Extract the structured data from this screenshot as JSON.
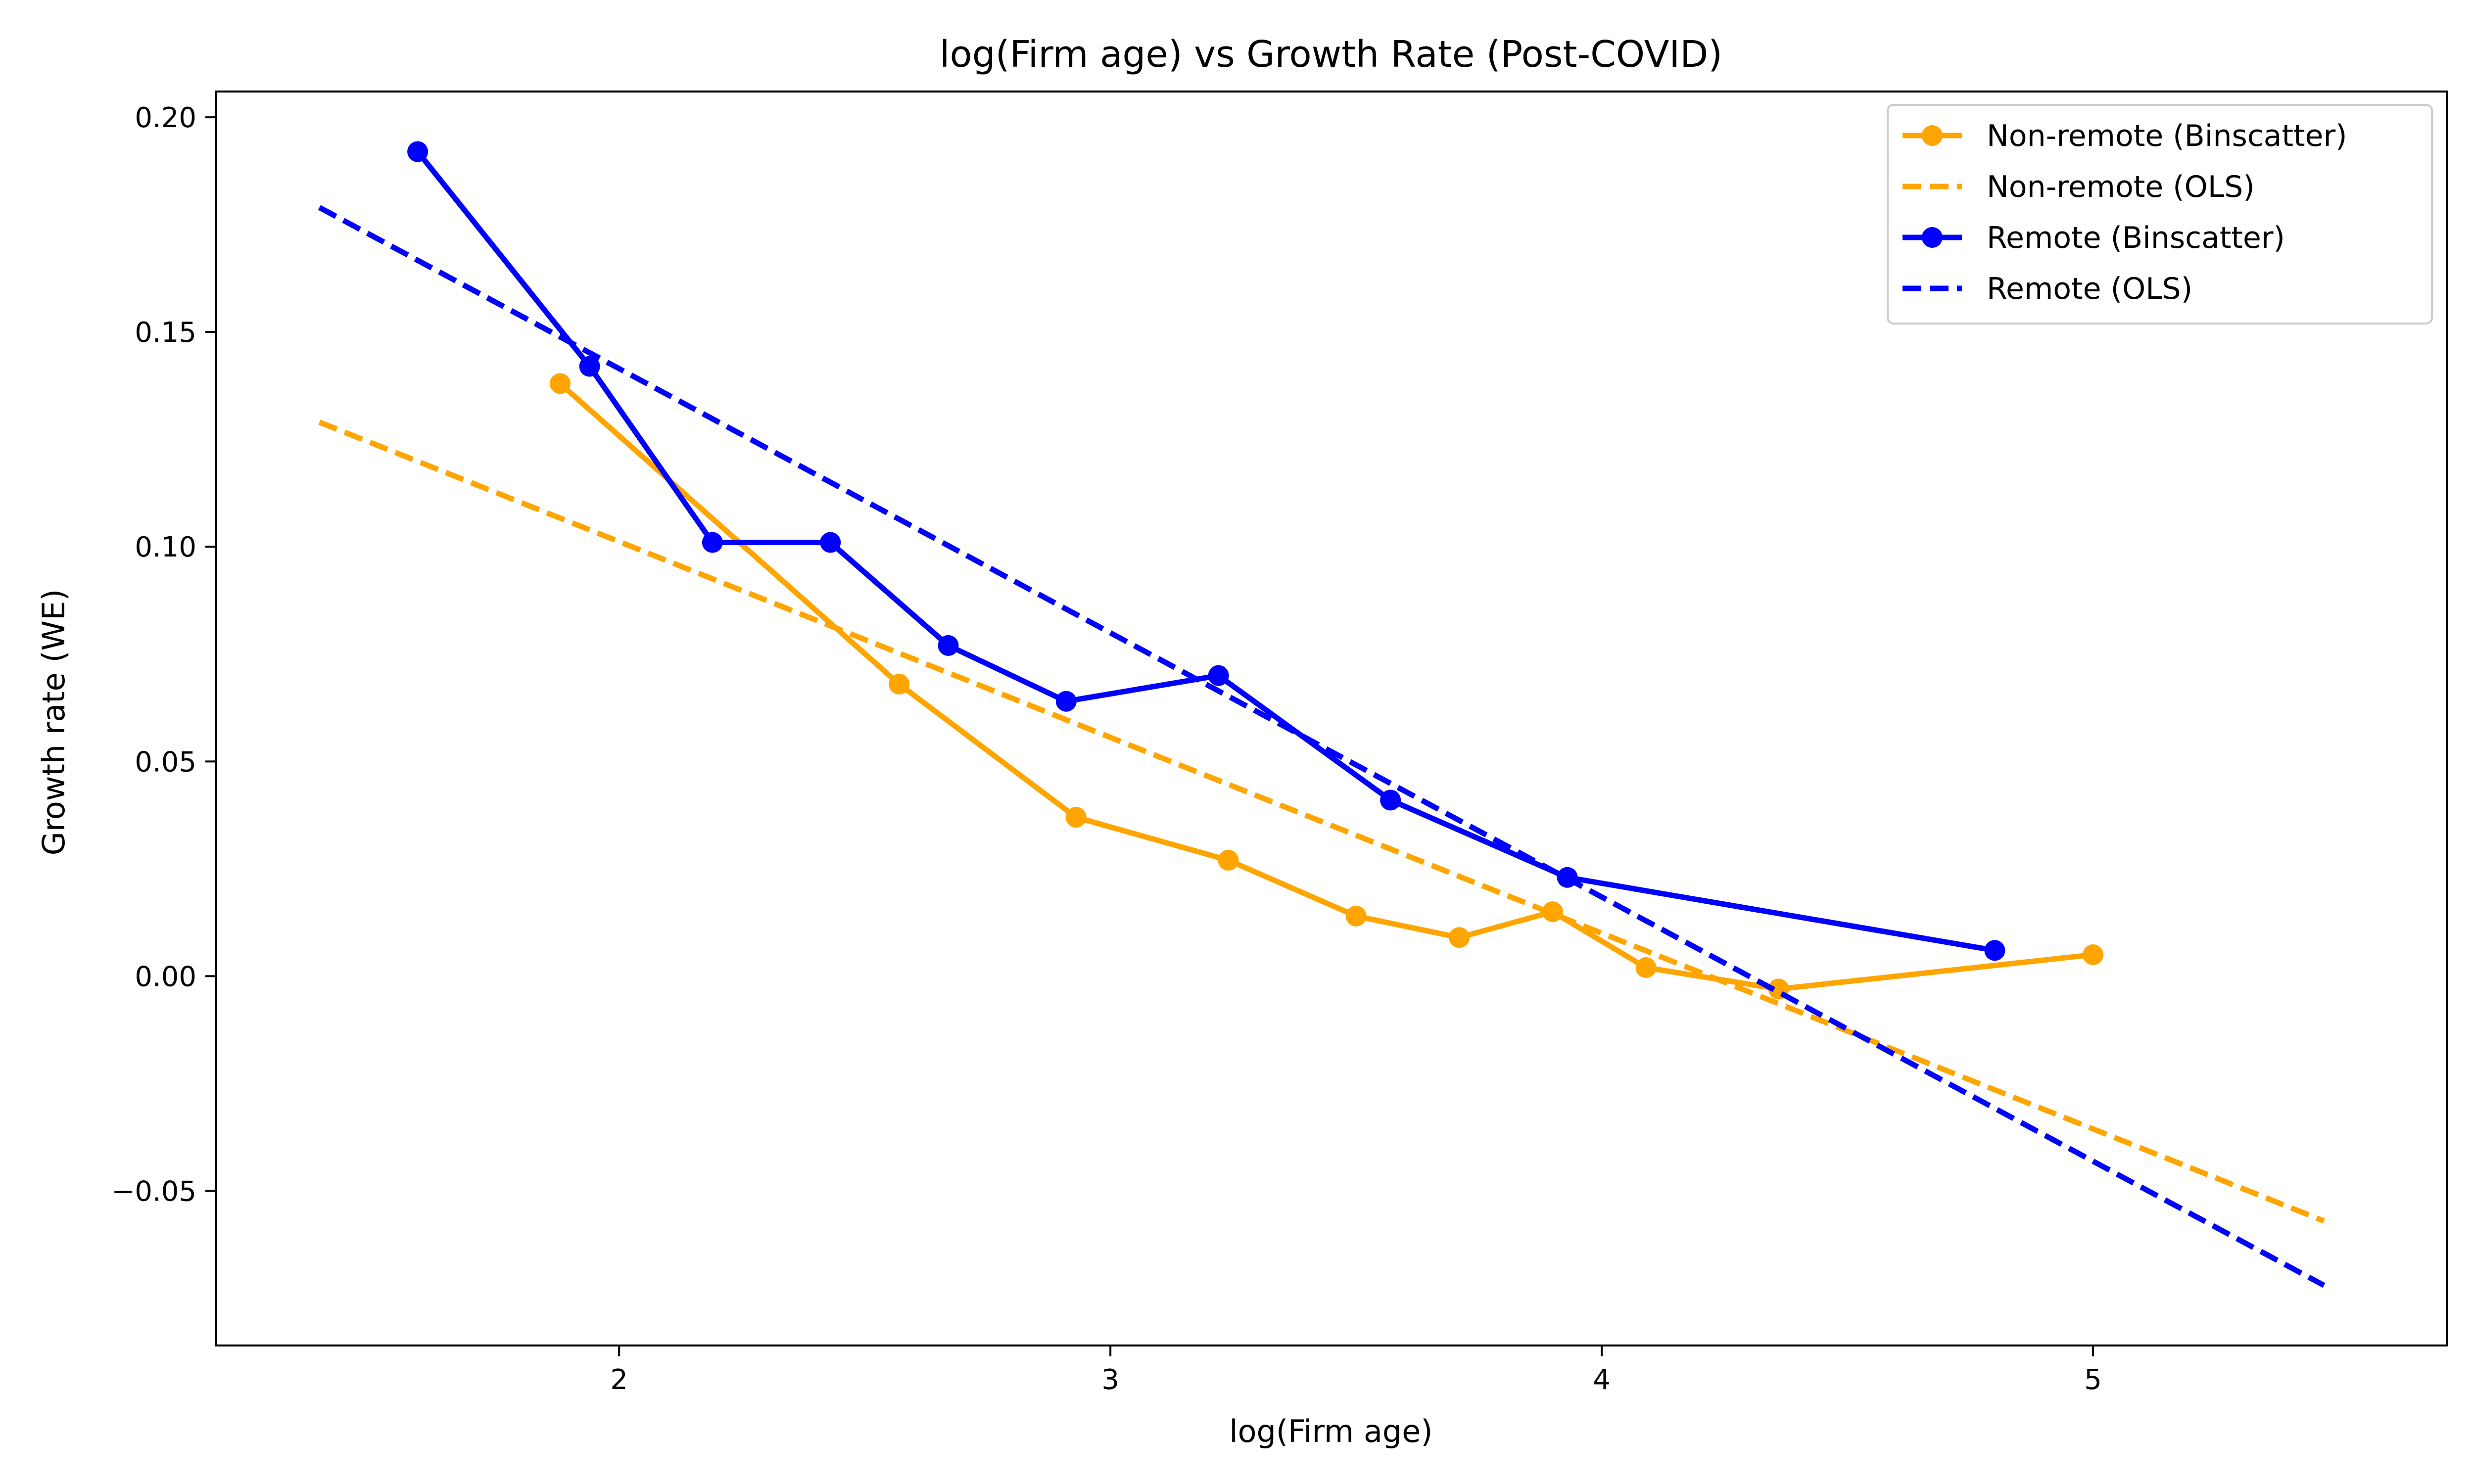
{
  "chart_data": {
    "type": "line",
    "title": "log(Firm age) vs Growth Rate (Post-COVID)",
    "xlabel": "log(Firm age)",
    "ylabel": "Growth rate (WE)",
    "xlim": [
      1.18,
      5.72
    ],
    "ylim": [
      -0.086,
      0.206
    ],
    "xticks": [
      2,
      3,
      4,
      5
    ],
    "xtick_labels": [
      "2",
      "3",
      "4",
      "5"
    ],
    "yticks": [
      -0.05,
      0.0,
      0.05,
      0.1,
      0.15,
      0.2
    ],
    "ytick_labels": [
      "−0.05",
      "0.00",
      "0.05",
      "0.10",
      "0.15",
      "0.20"
    ],
    "grid": false,
    "legend_position": "top-right",
    "series": [
      {
        "name": "Non-remote (Binscatter)",
        "style": "solid-markers",
        "color": "#FFA500",
        "x": [
          1.88,
          2.57,
          2.93,
          3.24,
          3.5,
          3.71,
          3.9,
          4.09,
          4.36,
          5.0
        ],
        "y": [
          0.138,
          0.068,
          0.037,
          0.027,
          0.014,
          0.009,
          0.015,
          0.002,
          -0.003,
          0.005
        ]
      },
      {
        "name": "Non-remote (OLS)",
        "style": "dashed",
        "color": "#FFA500",
        "x": [
          1.39,
          5.47
        ],
        "y": [
          0.129,
          -0.057
        ]
      },
      {
        "name": "Remote (Binscatter)",
        "style": "solid-markers",
        "color": "#0000FF",
        "x": [
          1.59,
          1.94,
          2.19,
          2.43,
          2.67,
          2.91,
          3.22,
          3.57,
          3.93,
          4.8
        ],
        "y": [
          0.192,
          0.142,
          0.101,
          0.101,
          0.077,
          0.064,
          0.07,
          0.041,
          0.023,
          0.006
        ]
      },
      {
        "name": "Remote (OLS)",
        "style": "dashed",
        "color": "#0000FF",
        "x": [
          1.39,
          5.47
        ],
        "y": [
          0.179,
          -0.072
        ]
      }
    ]
  }
}
